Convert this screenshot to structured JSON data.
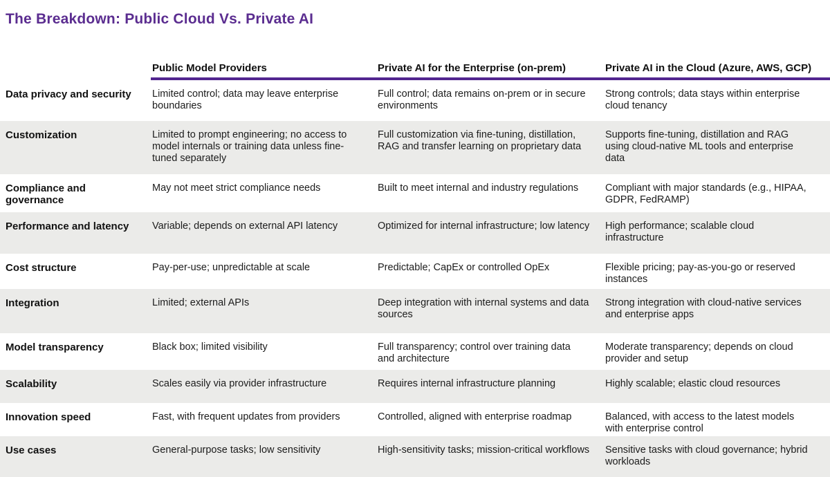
{
  "title": "The Breakdown: Public Cloud Vs. Private AI",
  "colors": {
    "title_accent": "#5B2D90",
    "header_rule": "#52268F",
    "row_alternate": "#EBEBE9"
  },
  "table": {
    "columns": [
      "",
      "Public Model Providers",
      "Private AI for the Enterprise (on-prem)",
      "Private AI in the Cloud (Azure, AWS, GCP)"
    ],
    "rows": [
      {
        "label": "Data privacy and security",
        "public": "Limited control; data may leave enterprise boundaries",
        "onprem": "Full control; data remains on-prem or in secure environments",
        "cloud": "Strong controls; data stays within enterprise cloud tenancy"
      },
      {
        "label": "Customization",
        "public": "Limited to prompt engineering; no access to model internals or training data unless fine-tuned separately",
        "onprem": "Full customization via fine-tuning, distillation, RAG and transfer learning on proprietary data",
        "cloud": "Supports fine-tuning, distillation and RAG using cloud-native ML tools and enterprise data"
      },
      {
        "label": "Compliance and governance",
        "public": "May not meet strict compliance needs",
        "onprem": "Built to meet internal and industry regulations",
        "cloud": "Compliant with major standards (e.g., HIPAA, GDPR, FedRAMP)"
      },
      {
        "label": "Performance and latency",
        "public": "Variable; depends on external API latency",
        "onprem": "Optimized for internal infrastructure; low latency",
        "cloud": "High performance; scalable cloud infrastructure"
      },
      {
        "label": "Cost structure",
        "public": "Pay-per-use; unpredictable at scale",
        "onprem": "Predictable; CapEx or controlled OpEx",
        "cloud": "Flexible pricing; pay-as-you-go or reserved instances"
      },
      {
        "label": "Integration",
        "public": "Limited; external APIs",
        "onprem": "Deep integration with internal systems and data sources",
        "cloud": "Strong integration with cloud-native services and enterprise apps"
      },
      {
        "label": "Model transparency",
        "public": "Black box; limited visibility",
        "onprem": "Full transparency; control over training data and architecture",
        "cloud": "Moderate transparency; depends on cloud provider and setup"
      },
      {
        "label": "Scalability",
        "public": "Scales easily via provider infrastructure",
        "onprem": "Requires internal infrastructure planning",
        "cloud": "Highly scalable; elastic cloud resources"
      },
      {
        "label": "Innovation speed",
        "public": "Fast, with frequent updates from providers",
        "onprem": "Controlled, aligned with enterprise roadmap",
        "cloud": "Balanced, with access to the latest models with enterprise control"
      },
      {
        "label": "Use cases",
        "public": "General-purpose tasks; low sensitivity",
        "onprem": "High-sensitivity tasks; mission-critical workflows",
        "cloud": "Sensitive tasks with cloud governance; hybrid workloads"
      }
    ]
  }
}
